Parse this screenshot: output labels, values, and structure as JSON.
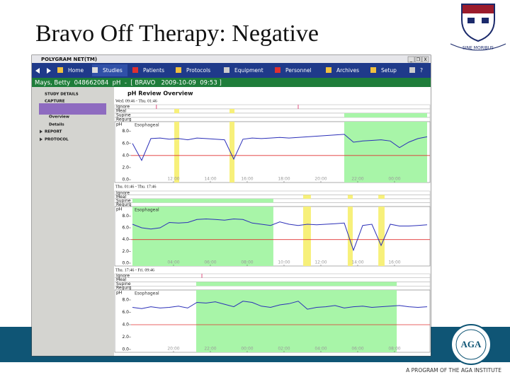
{
  "title": "Bravo Off Therapy: Negative",
  "penn_motto": "SINE MORIBUS",
  "footer": {
    "aga": "AGA",
    "program": "A PROGRAM OF THE AGA INSTITUTE"
  },
  "app": {
    "window_title": "POLYGRAM NET(TM)",
    "window_buttons": [
      "_",
      "❒",
      "X"
    ],
    "toolbar": [
      "Home",
      "Studies",
      "Patients",
      "Protocols",
      "Equipment",
      "Personnel",
      "Archives",
      "Setup",
      "?"
    ],
    "patient_bar": "Mays, Betty  048662084  pH  -  [ BRAVO   2009-10-09  09:53 ]",
    "sidebar": [
      "STUDY DETAILS",
      "CAPTURE",
      "Overview",
      "Details",
      "REPORT",
      "PROTOCOL"
    ],
    "review_title": "pH Review Overview",
    "event_rows": [
      "Ignore",
      "Meal",
      "Supine",
      "Regurg"
    ],
    "axis_label": "pH",
    "channel": "Esophageal",
    "ph_color": "#2b2fb8",
    "threshold_color": "#e03030",
    "supine_color": "#a8f5a8",
    "meal_color": "#f7f07a",
    "ignore_color": "#e05080",
    "panels": [
      {
        "range": "Wed. 09:46 - Thu. 01:46",
        "xlim": [
          0,
          16
        ],
        "ylim": [
          0,
          9.6
        ],
        "threshold": 4,
        "yticks": [
          {
            "value": 8,
            "label": "8.0"
          },
          {
            "value": 6,
            "label": "6.0"
          },
          {
            "value": 4,
            "label": "4.0"
          },
          {
            "value": 2,
            "label": "2.0"
          },
          {
            "value": 0,
            "label": "0.0"
          }
        ],
        "xticks": [
          {
            "value": 2.23,
            "label": "12:00"
          },
          {
            "value": 4.23,
            "label": "14:00"
          },
          {
            "value": 6.23,
            "label": "16:00"
          },
          {
            "value": 8.23,
            "label": "18:00"
          },
          {
            "value": 10.23,
            "label": "20:00"
          },
          {
            "value": 12.23,
            "label": "22:00"
          },
          {
            "value": 14.23,
            "label": "00:00"
          }
        ],
        "supine": [
          [
            11.5,
            16
          ]
        ],
        "meal": [
          [
            2.27,
            2.54
          ],
          [
            5.27,
            5.54
          ]
        ],
        "ignore": [
          1.3,
          9.0
        ],
        "hours": [
          0,
          0.5,
          1,
          1.5,
          2,
          2.5,
          3,
          3.5,
          4,
          4.5,
          5,
          5.5,
          6,
          6.5,
          7,
          7.5,
          8,
          8.5,
          9,
          9.5,
          10,
          10.5,
          11,
          11.5,
          12,
          12.5,
          13,
          13.5,
          14,
          14.5,
          15,
          15.5,
          16
        ],
        "ph": [
          6.0,
          3.2,
          6.8,
          6.9,
          6.7,
          6.8,
          6.6,
          6.9,
          6.8,
          6.7,
          6.6,
          3.4,
          6.7,
          6.9,
          6.8,
          6.9,
          7.0,
          6.9,
          7.0,
          7.1,
          7.2,
          7.3,
          7.4,
          7.5,
          6.2,
          6.4,
          6.5,
          6.6,
          6.4,
          5.3,
          6.2,
          6.8,
          7.1
        ]
      },
      {
        "range": "Thu. 01:46 - Thu. 17:46",
        "xlim": [
          0,
          16
        ],
        "ylim": [
          0,
          9.6
        ],
        "threshold": 4,
        "yticks": [
          {
            "value": 8,
            "label": "8.0"
          },
          {
            "value": 6,
            "label": "6.0"
          },
          {
            "value": 4,
            "label": "4.0"
          },
          {
            "value": 2,
            "label": "2.0"
          },
          {
            "value": 0,
            "label": "0.0"
          }
        ],
        "xticks": [
          {
            "value": 2.23,
            "label": "04:00"
          },
          {
            "value": 4.23,
            "label": "06:00"
          },
          {
            "value": 6.23,
            "label": "08:00"
          },
          {
            "value": 8.23,
            "label": "10:00"
          },
          {
            "value": 10.23,
            "label": "12:00"
          },
          {
            "value": 12.23,
            "label": "14:00"
          },
          {
            "value": 14.23,
            "label": "16:00"
          }
        ],
        "supine": [
          [
            0,
            7.65
          ]
        ],
        "meal": [
          [
            9.27,
            9.69
          ],
          [
            11.69,
            11.96
          ],
          [
            13.35,
            13.69
          ]
        ],
        "ignore": [],
        "hours": [
          0,
          0.5,
          1,
          1.5,
          2,
          2.5,
          3,
          3.5,
          4,
          4.5,
          5,
          5.5,
          6,
          6.5,
          7,
          7.5,
          8,
          8.5,
          9,
          9.5,
          10,
          10.5,
          11,
          11.5,
          12,
          12.5,
          13,
          13.5,
          14,
          14.5,
          15,
          15.5,
          16
        ],
        "ph": [
          6.6,
          6.0,
          5.8,
          6.0,
          6.9,
          6.8,
          6.9,
          7.4,
          7.5,
          7.4,
          7.3,
          7.5,
          7.4,
          6.8,
          6.6,
          6.4,
          7.0,
          6.6,
          6.4,
          6.6,
          6.5,
          6.6,
          6.7,
          6.8,
          2.2,
          6.4,
          6.6,
          3.0,
          6.6,
          6.3,
          6.3,
          6.4,
          6.5
        ]
      },
      {
        "range": "Thu. 17:46 - Fri. 09:46",
        "xlim": [
          0,
          16
        ],
        "ylim": [
          0,
          9.6
        ],
        "threshold": 4,
        "yticks": [
          {
            "value": 8,
            "label": "8.0"
          },
          {
            "value": 6,
            "label": "6.0"
          },
          {
            "value": 4,
            "label": "4.0"
          },
          {
            "value": 2,
            "label": "2.0"
          },
          {
            "value": 0,
            "label": "0.0"
          }
        ],
        "xticks": [
          {
            "value": 2.23,
            "label": "20:00"
          },
          {
            "value": 4.23,
            "label": "22:00"
          },
          {
            "value": 6.23,
            "label": "00:00"
          },
          {
            "value": 8.23,
            "label": "02:00"
          },
          {
            "value": 10.23,
            "label": "04:00"
          },
          {
            "value": 12.23,
            "label": "06:00"
          },
          {
            "value": 14.23,
            "label": "08:00"
          }
        ],
        "supine": [
          [
            3.46,
            14.35
          ]
        ],
        "meal": [],
        "ignore": [
          3.77
        ],
        "hours": [
          0,
          0.5,
          1,
          1.5,
          2,
          2.5,
          3,
          3.5,
          4,
          4.5,
          5,
          5.5,
          6,
          6.5,
          7,
          7.5,
          8,
          8.5,
          9,
          9.5,
          10,
          10.5,
          11,
          11.5,
          12,
          12.5,
          13,
          13.5,
          14,
          14.5,
          15,
          15.5,
          16
        ],
        "ph": [
          6.8,
          6.6,
          6.9,
          6.7,
          6.8,
          7.0,
          6.7,
          7.6,
          7.5,
          7.7,
          7.3,
          6.9,
          7.8,
          7.6,
          7.0,
          6.8,
          7.2,
          7.4,
          7.8,
          6.5,
          6.8,
          6.9,
          7.1,
          6.7,
          6.9,
          7.0,
          6.8,
          6.9,
          7.0,
          7.1,
          6.9,
          6.8,
          6.9
        ]
      }
    ]
  }
}
